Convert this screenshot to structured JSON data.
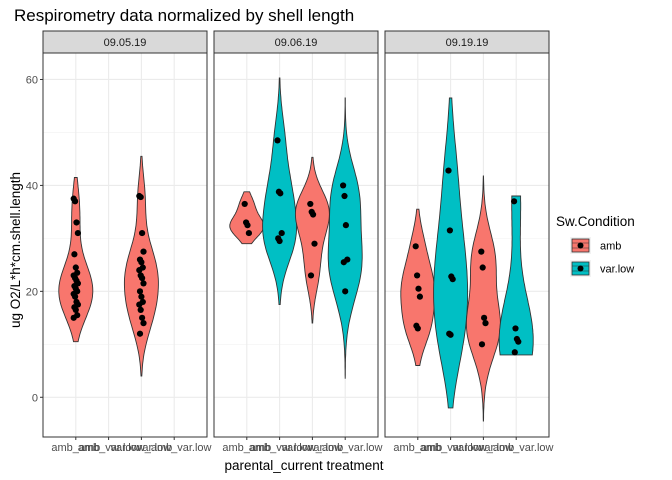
{
  "chart_data": {
    "type": "violin",
    "title": "Respirometry data normalized by shell length",
    "xlabel": "parental_current treatment",
    "ylabel": "ug O2/L*h*cm.shell.length",
    "ylim": [
      -7.5,
      65
    ],
    "y_ticks": [
      0,
      20,
      40,
      60
    ],
    "categories": [
      "amb_amb",
      "amb_var.low",
      "var.low_amb",
      "var.low_var.low"
    ],
    "grid": true,
    "legend": {
      "title": "Sw.Condition",
      "position": "right",
      "entries": [
        {
          "name": "amb",
          "color": "#F8766D"
        },
        {
          "name": "var.low",
          "color": "#00BFC4"
        }
      ]
    },
    "panels": [
      {
        "label": "09.05.19",
        "violins": [
          {
            "category": "amb_amb",
            "condition": "amb",
            "min": 10.5,
            "max": 41.5,
            "points": [
              37.5,
              37.0,
              33.0,
              31.0,
              27.0,
              24.5,
              23.5,
              23.0,
              22.5,
              22.0,
              21.5,
              21.0,
              20.5,
              20.0,
              19.5,
              19.0,
              18.0,
              17.5,
              17.0,
              16.5,
              15.5,
              15.0
            ]
          },
          {
            "category": "var.low_amb",
            "condition": "amb",
            "min": 4.0,
            "max": 45.5,
            "points": [
              38.0,
              37.8,
              31.0,
              27.5,
              26.0,
              25.5,
              24.5,
              24.0,
              23.0,
              22.5,
              21.5,
              20.0,
              19.0,
              18.0,
              17.5,
              16.5,
              15.0,
              14.0,
              12.0
            ]
          }
        ]
      },
      {
        "label": "09.06.19",
        "violins": [
          {
            "category": "amb_amb",
            "condition": "amb",
            "min": 29.0,
            "max": 38.8,
            "points": [
              36.5,
              33.0,
              32.5,
              31.0
            ]
          },
          {
            "category": "amb_var.low",
            "condition": "var.low",
            "min": 17.5,
            "max": 60.3,
            "points": [
              48.5,
              38.8,
              38.5,
              31.0,
              30.0,
              29.5
            ]
          },
          {
            "category": "var.low_amb",
            "condition": "amb",
            "min": 14.0,
            "max": 45.3,
            "points": [
              36.5,
              35.0,
              34.5,
              29.0,
              23.0
            ]
          },
          {
            "category": "var.low_var.low",
            "condition": "var.low",
            "min": 3.5,
            "max": 56.5,
            "points": [
              40.0,
              38.0,
              32.5,
              26.0,
              25.5,
              20.0
            ]
          }
        ]
      },
      {
        "label": "09.19.19",
        "violins": [
          {
            "category": "amb_amb",
            "condition": "amb",
            "min": 6.0,
            "max": 35.5,
            "points": [
              28.5,
              23.0,
              20.5,
              19.0,
              13.5,
              13.0
            ]
          },
          {
            "category": "amb_var.low",
            "condition": "var.low",
            "min": -2.0,
            "max": 56.5,
            "points": [
              42.8,
              31.5,
              22.8,
              22.3,
              12.0,
              11.8
            ]
          },
          {
            "category": "var.low_amb",
            "condition": "amb",
            "min": -4.5,
            "max": 41.8,
            "points": [
              27.5,
              24.5,
              15.0,
              14.0,
              10.0
            ]
          },
          {
            "category": "var.low_var.low",
            "condition": "var.low",
            "min": 8.0,
            "max": 38.0,
            "points": [
              37.0,
              13.0,
              11.0,
              10.5,
              8.5
            ]
          }
        ]
      }
    ]
  }
}
